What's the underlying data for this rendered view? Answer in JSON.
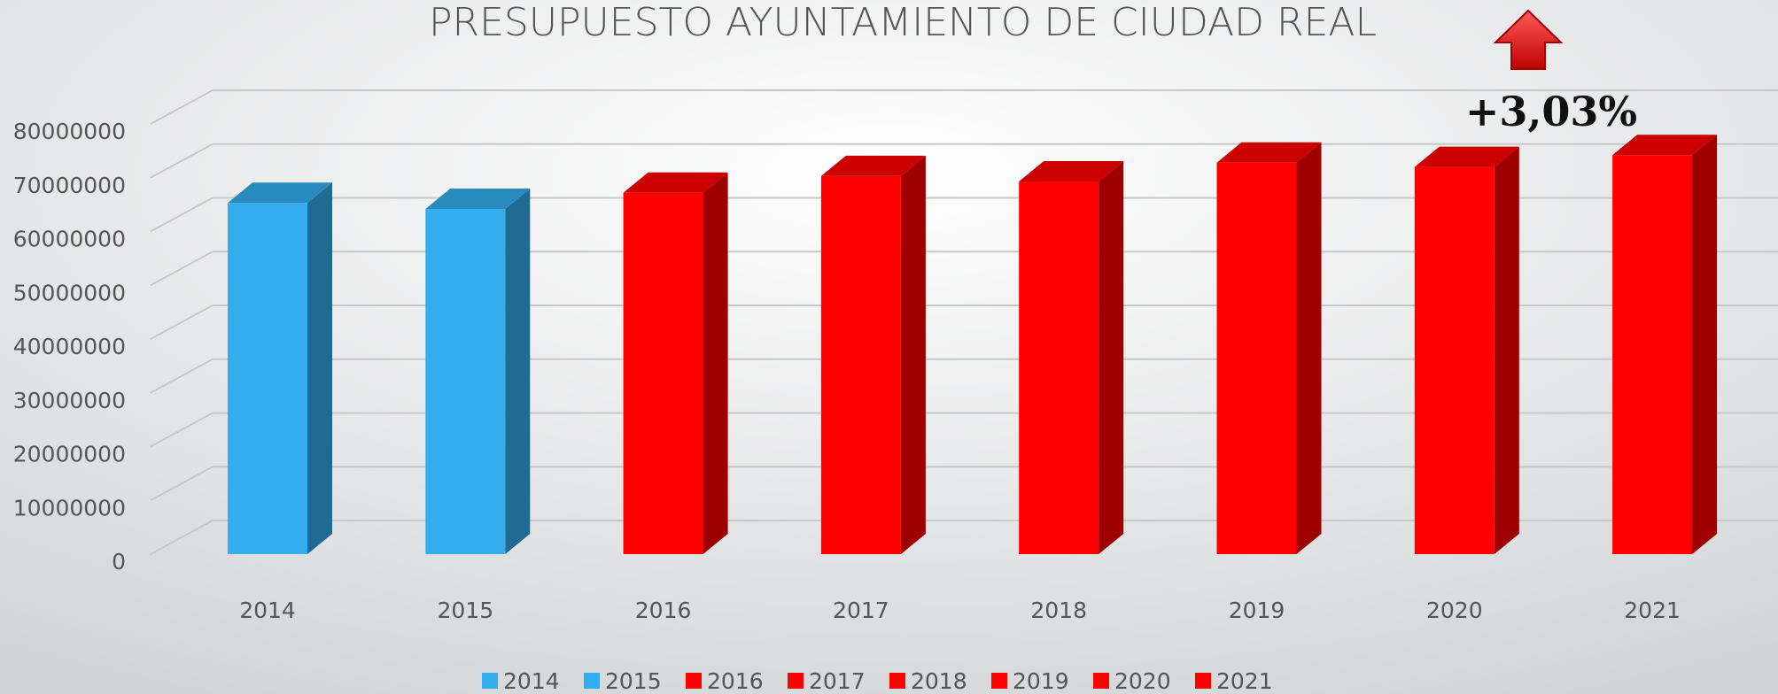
{
  "chart_data": {
    "type": "bar3d",
    "title": "PRESUPUESTO AYUNTAMIENTO DE CIUDAD REAL",
    "categories": [
      "2014",
      "2015",
      "2016",
      "2017",
      "2018",
      "2019",
      "2020",
      "2021"
    ],
    "values": [
      65300000,
      64200000,
      67200000,
      70300000,
      69300000,
      72800000,
      72000000,
      74200000
    ],
    "colors": [
      "#33adee",
      "#33adee",
      "#ff0000",
      "#ff0000",
      "#ff0000",
      "#ff0000",
      "#ff0000",
      "#ff0000"
    ],
    "ylim": [
      0,
      80000000
    ],
    "yticks": [
      0,
      10000000,
      20000000,
      30000000,
      40000000,
      50000000,
      60000000,
      70000000,
      80000000
    ],
    "grid": true,
    "legend": "bottom",
    "annotation": "+3,03%"
  }
}
